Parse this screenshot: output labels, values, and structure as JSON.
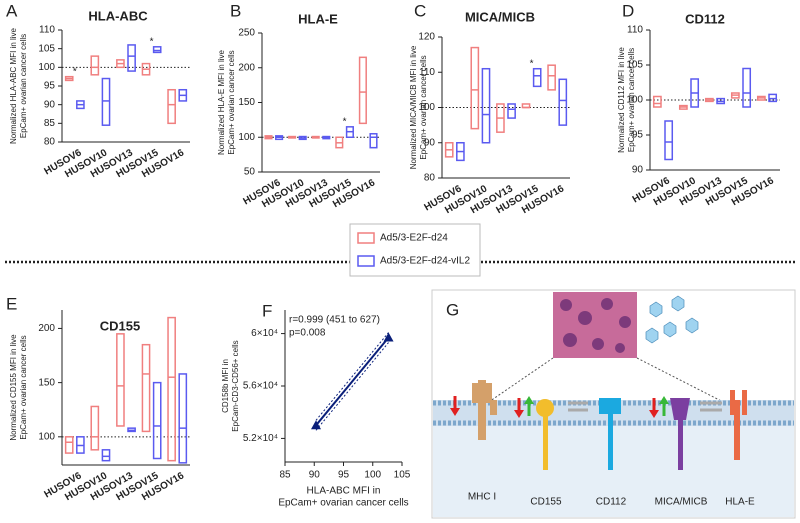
{
  "chart_data": [
    {
      "type": "floating-bar",
      "panel": "A",
      "title": "HLA-ABC",
      "ylabel": [
        "Normalized HLA-ABC MFI in live",
        "EpCam+ ovarian cancer cells"
      ],
      "categories": [
        "HUSOV6",
        "HUSOV10",
        "HUSOV13",
        "HUSOV15",
        "HUSOV16"
      ],
      "series": [
        {
          "name": "Ad5/3-E2F-d24",
          "color": "#f07f7f",
          "low": [
            96.5,
            98,
            100,
            98,
            85
          ],
          "high": [
            97.5,
            103,
            102,
            101,
            94
          ],
          "values": [
            97,
            100,
            101,
            99.5,
            90
          ]
        },
        {
          "name": "Ad5/3-E2F-d24-vIL2",
          "color": "#5a5af0",
          "low": [
            89,
            84.5,
            99,
            104,
            91
          ],
          "high": [
            91,
            97,
            106,
            105.5,
            94
          ],
          "values": [
            90,
            91,
            103,
            104.5,
            92.5
          ]
        }
      ],
      "ylim": [
        80,
        110
      ],
      "yticks": [
        80,
        85,
        90,
        95,
        100,
        105,
        110
      ],
      "reference_line": 100,
      "annotations": [
        {
          "text": "*",
          "category": 0
        },
        {
          "text": "*",
          "category": 3
        }
      ]
    },
    {
      "type": "floating-bar",
      "panel": "B",
      "title": "HLA-E",
      "ylabel": [
        "Normalized HLA-E MFI in live",
        "EpCam+ ovarian cancer cells"
      ],
      "categories": [
        "HUSOV6",
        "HUSOV10",
        "HUSOV13",
        "HUSOV15",
        "HUSOV16"
      ],
      "series": [
        {
          "name": "Ad5/3-E2F-d24",
          "color": "#f07f7f",
          "low": [
            98,
            99,
            99,
            85,
            120
          ],
          "high": [
            102,
            101,
            101,
            100,
            215
          ],
          "values": [
            100,
            100,
            100,
            92,
            165
          ]
        },
        {
          "name": "Ad5/3-E2F-d24-vIL2",
          "color": "#5a5af0",
          "low": [
            97,
            97,
            98,
            100,
            85
          ],
          "high": [
            102,
            101,
            101,
            115,
            105
          ],
          "values": [
            100,
            99,
            100,
            108,
            100
          ]
        }
      ],
      "ylim": [
        50,
        250
      ],
      "yticks": [
        50,
        100,
        150,
        200,
        250
      ],
      "reference_line": 100,
      "annotations": [
        {
          "text": "*",
          "category": 3
        }
      ]
    },
    {
      "type": "floating-bar",
      "panel": "C",
      "title": "MICA/MICB",
      "ylabel": [
        "Normalized MICA/MICB MFI in live",
        "EpCam+ ovarian cancer cells"
      ],
      "categories": [
        "HUSOV6",
        "HUSOV10",
        "HUSOV13",
        "HUSOV15",
        "HUSOV16"
      ],
      "series": [
        {
          "name": "Ad5/3-E2F-d24",
          "color": "#f07f7f",
          "low": [
            86,
            94,
            93,
            100,
            105
          ],
          "high": [
            90,
            117,
            101,
            101,
            112
          ],
          "values": [
            88,
            105,
            97,
            100,
            109
          ]
        },
        {
          "name": "Ad5/3-E2F-d24-vIL2",
          "color": "#5a5af0",
          "low": [
            85,
            90,
            97,
            106,
            95
          ],
          "high": [
            90,
            111,
            101,
            111,
            108
          ],
          "values": [
            87.5,
            98,
            99.5,
            109,
            102
          ]
        }
      ],
      "ylim": [
        80,
        120
      ],
      "yticks": [
        80,
        90,
        100,
        110,
        120
      ],
      "reference_line": 100,
      "annotations": [
        {
          "text": "*",
          "category": 3
        }
      ]
    },
    {
      "type": "floating-bar",
      "panel": "D",
      "title": "CD112",
      "ylabel": [
        "Normalized CD112 MFI in live",
        "EpCam+ ovarian cancer cells"
      ],
      "categories": [
        "HUSOV6",
        "HUSOV10",
        "HUSOV13",
        "HUSOV15",
        "HUSOV16"
      ],
      "series": [
        {
          "name": "Ad5/3-E2F-d24",
          "color": "#f07f7f",
          "low": [
            99,
            98.7,
            99.8,
            100.3,
            100
          ],
          "high": [
            100.5,
            99.2,
            100.2,
            101,
            100.5
          ],
          "values": [
            99.5,
            99,
            100,
            100.7,
            100.3
          ]
        },
        {
          "name": "Ad5/3-E2F-d24-vIL2",
          "color": "#5a5af0",
          "low": [
            91.5,
            99,
            99.5,
            99,
            99.8
          ],
          "high": [
            97,
            103,
            100.2,
            104.5,
            100.8
          ],
          "values": [
            94,
            101,
            99.8,
            101,
            100.2
          ]
        }
      ],
      "ylim": [
        90,
        110
      ],
      "yticks": [
        90,
        95,
        100,
        105,
        110
      ],
      "reference_line": 100,
      "annotations": []
    },
    {
      "type": "floating-bar",
      "panel": "E",
      "title": "CD155",
      "ylabel": [
        "Normalized CD155 MFI in live",
        "EpCam+ ovarian cancer cells"
      ],
      "categories": [
        "HUSOV6",
        "HUSOV10",
        "HUSOV13",
        "HUSOV15",
        "HUSOV16"
      ],
      "series": [
        {
          "name": "Ad5/3-E2F-d24",
          "color": "#f07f7f",
          "low": [
            85,
            88,
            110,
            105,
            78
          ],
          "high": [
            100,
            128,
            195,
            185,
            210
          ],
          "values": [
            95,
            100,
            147,
            158,
            155
          ]
        },
        {
          "name": "Ad5/3-E2F-d24-vIL2",
          "color": "#5a5af0",
          "low": [
            85,
            78,
            105,
            80,
            76
          ],
          "high": [
            100,
            88,
            108,
            150,
            158
          ],
          "values": [
            92,
            82,
            106,
            110,
            108
          ]
        }
      ],
      "ylim": [
        74,
        217
      ],
      "yticks": [
        100,
        150,
        200
      ],
      "reference_line": 100,
      "annotations": []
    },
    {
      "type": "scatter",
      "panel": "F",
      "xlabel": [
        "HLA-ABC MFI in",
        "EpCam+ ovarian cancer cells"
      ],
      "ylabel": [
        "CD158b MFI in",
        "EpCam-CD3-CD56+ cells"
      ],
      "x": [
        90.3,
        102.7
      ],
      "values": [
        53000,
        59700
      ],
      "color": "#0a1f7a",
      "xlim": [
        85,
        105
      ],
      "xticks": [
        85,
        90,
        95,
        100,
        105
      ],
      "ylim": [
        50200,
        61800
      ],
      "yticks": [
        {
          "value": 52000,
          "label": "5.2×10⁴"
        },
        {
          "value": 56000,
          "label": "5.6×10⁴"
        },
        {
          "value": 60000,
          "label": "6×10⁴"
        }
      ],
      "annotations": [
        "r=0.999 (451 to 627)",
        "p=0.008"
      ]
    }
  ],
  "diagram": {
    "panel": "G",
    "labels": [
      "MHC I",
      "CD155",
      "CD112",
      "MICA/MICB",
      "HLA-E"
    ]
  }
}
